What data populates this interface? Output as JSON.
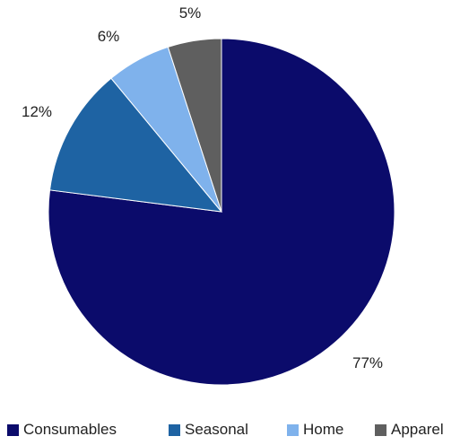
{
  "chart_data": {
    "type": "pie",
    "title": "",
    "categories": [
      "Consumables",
      "Seasonal",
      "Home",
      "Apparel"
    ],
    "values": [
      77,
      12,
      6,
      5
    ],
    "labels": [
      "77%",
      "12%",
      "6%",
      "5%"
    ],
    "colors": [
      "#0B0B6B",
      "#1E63A3",
      "#7FB2EC",
      "#5F5F5F"
    ],
    "legend_position": "bottom",
    "start_angle": "12 o'clock",
    "direction": "clockwise"
  }
}
